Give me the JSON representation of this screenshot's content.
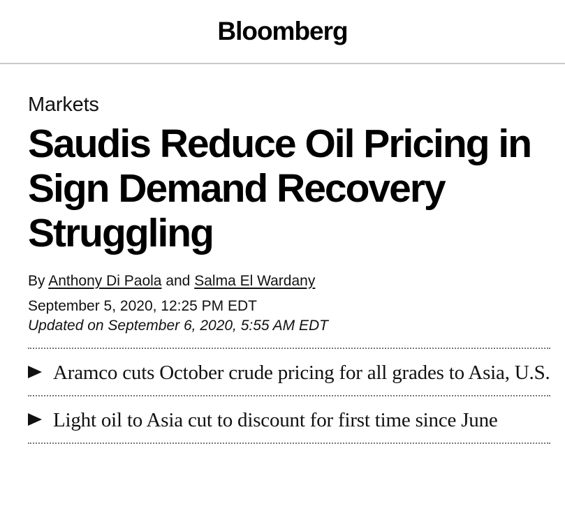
{
  "masthead": {
    "logo": "Bloomberg"
  },
  "article": {
    "section": "Markets",
    "headline": "Saudis Reduce Oil Pricing in Sign Demand Recovery Struggling",
    "byline": {
      "prefix": "By",
      "authors": [
        "Anthony Di Paola",
        "Salma El Wardany"
      ],
      "conjunction": "and"
    },
    "published": "September 5, 2020, 12:25 PM EDT",
    "updated": "Updated on  September 6, 2020, 5:55 AM EDT",
    "bullets": [
      "Aramco cuts October crude pricing for all grades to Asia, U.S.",
      "Light oil to Asia cut to discount for first time since June"
    ]
  },
  "icons": {
    "bullet": "triangle-right-icon"
  },
  "colors": {
    "text": "#000000",
    "divider": "#c9c9c9",
    "dotted_rule": "#777777"
  }
}
